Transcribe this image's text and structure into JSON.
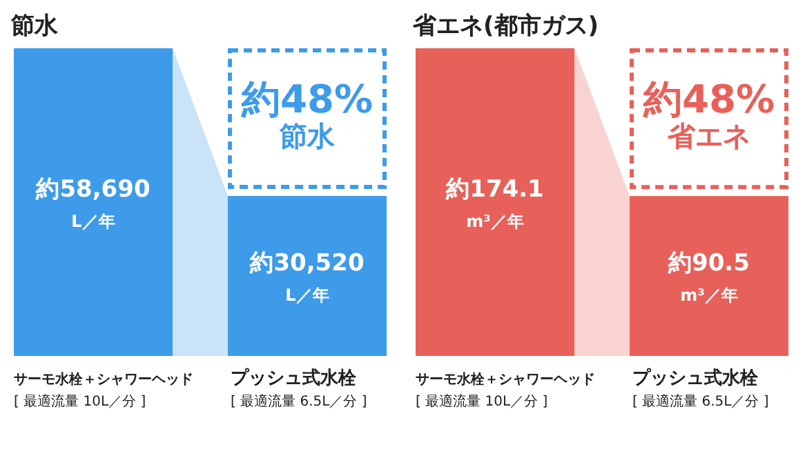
{
  "chart_data": [
    {
      "type": "bar",
      "title": "節水",
      "categories": [
        "サーモ水栓＋シャワーヘッド\n[ 最適流量 10L／分 ]",
        "プッシュ式水栓\n[ 最適流量 6.5L／分 ]"
      ],
      "series": [
        {
          "color": "#3d9be9",
          "values": [
            58690,
            30520
          ],
          "value_labels": [
            "約58,690\nL／年",
            "約30,520\nL／年"
          ]
        }
      ],
      "annotations": [
        "約48%\n節水"
      ]
    },
    {
      "type": "bar",
      "title": "省エネ(都市ガス)",
      "categories": [
        "サーモ水栓＋シャワーヘッド\n[ 最適流量 10L／分 ]",
        "プッシュ式水栓\n[ 最適流量 6.5L／分 ]"
      ],
      "series": [
        {
          "color": "#e8605a",
          "values": [
            174.1,
            90.5
          ],
          "value_labels": [
            "約174.1\nm³／年",
            "約90.5\nm³／年"
          ]
        }
      ],
      "annotations": [
        "約48%\n省エネ"
      ]
    }
  ]
}
